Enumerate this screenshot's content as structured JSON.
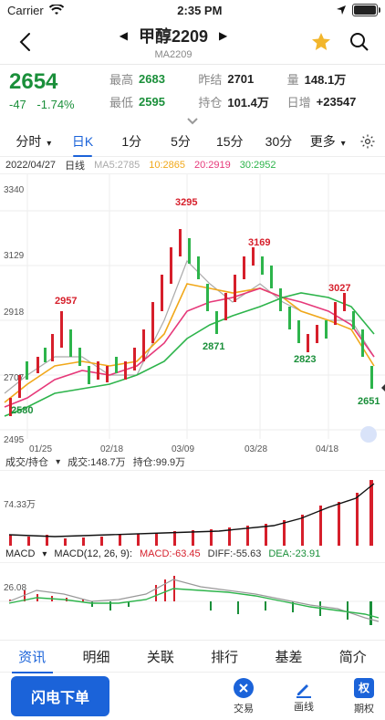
{
  "status_bar": {
    "carrier": "Carrier",
    "time": "2:35 PM"
  },
  "header": {
    "title": "甲醇2209",
    "subtitle": "MA2209"
  },
  "quote": {
    "price": "2654",
    "change": "-47",
    "change_pct": "-1.74%",
    "stats": [
      {
        "label": "最高",
        "value": "2683",
        "tone": "green"
      },
      {
        "label": "昨结",
        "value": "2701",
        "tone": "normal"
      },
      {
        "label": "量",
        "value": "148.1万",
        "tone": "normal"
      },
      {
        "label": "最低",
        "value": "2595",
        "tone": "green"
      },
      {
        "label": "持仓",
        "value": "101.4万",
        "tone": "normal"
      },
      {
        "label": "日增",
        "value": "+23547",
        "tone": "normal"
      }
    ]
  },
  "tabs": [
    "分时",
    "日K",
    "1分",
    "5分",
    "15分",
    "30分",
    "更多"
  ],
  "active_tab": "日K",
  "legend": {
    "date": "2022/04/27",
    "type": "日线",
    "ma5": "MA5:2785",
    "ma10": "10:2865",
    "ma20": "20:2919",
    "ma30": "30:2952"
  },
  "chart": {
    "y_labels": [
      "3340",
      "3129",
      "2918",
      "2707",
      "2495"
    ],
    "x_labels": [
      "01/25",
      "02/18",
      "03/09",
      "03/28",
      "04/18"
    ],
    "annotations": [
      "2957",
      "3295",
      "3169",
      "3027",
      "2871",
      "2823",
      "2651",
      "2580"
    ]
  },
  "volume": {
    "title": "成交/持仓",
    "vol": "成交:148.7万",
    "oi": "持仓:99.9万",
    "axis_value": "74.33万"
  },
  "macd": {
    "title": "MACD",
    "params": "MACD(12, 26, 9):",
    "macd": "MACD:-63.45",
    "diff": "DIFF:-55.63",
    "dea": "DEA:-23.91",
    "axis_value": "26.08"
  },
  "bottom_tabs": [
    "资讯",
    "明细",
    "关联",
    "排行",
    "基差",
    "简介"
  ],
  "footer": {
    "cta": "闪电下单",
    "trade": "交易",
    "draw": "画线",
    "option": "期权"
  }
}
